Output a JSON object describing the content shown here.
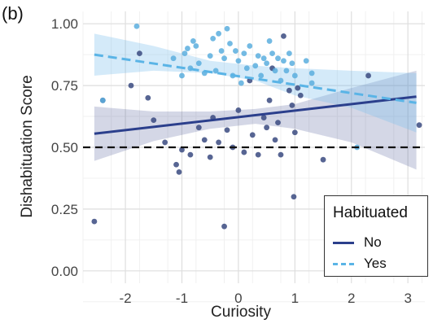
{
  "panel_label": "(b)",
  "chart_data": {
    "type": "scatter",
    "xlabel": "Curiosity",
    "ylabel": "Dishabituation Score",
    "xlim": [
      -2.75,
      3.3
    ],
    "ylim": [
      -0.05,
      1.05
    ],
    "xticks": [
      -2,
      -1,
      0,
      1,
      2,
      3
    ],
    "yticks": [
      0.0,
      0.25,
      0.5,
      0.75,
      1.0
    ],
    "xtick_labels": [
      "-2",
      "-1",
      "0",
      "1",
      "2",
      "3"
    ],
    "ytick_labels": [
      "0.00",
      "0.25",
      "0.50",
      "0.75",
      "1.00"
    ],
    "grid": true,
    "reference_line": {
      "y": 0.5,
      "style": "dashed",
      "color": "#111111"
    },
    "legend": {
      "title": "Habituated",
      "placement": "bottom-right",
      "entries": [
        {
          "label": "No",
          "color": "#2b3f8c",
          "style": "solid"
        },
        {
          "label": "Yes",
          "color": "#5ab4e6",
          "style": "dashed"
        }
      ]
    },
    "series": [
      {
        "name": "No",
        "color": "#2b3f8c",
        "point_color": "#3a4a80",
        "fit": {
          "x": [
            -2.55,
            3.15
          ],
          "y": [
            0.555,
            0.705
          ]
        },
        "ci": {
          "x": [
            -2.55,
            -1.5,
            -0.5,
            0.3,
            1.0,
            2.0,
            3.15
          ],
          "lower": [
            0.445,
            0.525,
            0.575,
            0.595,
            0.575,
            0.52,
            0.41
          ],
          "upper": [
            0.665,
            0.645,
            0.645,
            0.655,
            0.675,
            0.74,
            0.81
          ]
        },
        "points": [
          {
            "x": -2.55,
            "y": 0.2
          },
          {
            "x": -2.4,
            "y": 0.69
          },
          {
            "x": -1.9,
            "y": 0.75
          },
          {
            "x": -1.75,
            "y": 0.88
          },
          {
            "x": -1.6,
            "y": 0.7
          },
          {
            "x": -1.5,
            "y": 0.61
          },
          {
            "x": -1.3,
            "y": 0.52
          },
          {
            "x": -1.1,
            "y": 0.43
          },
          {
            "x": -1.05,
            "y": 0.4
          },
          {
            "x": -1.0,
            "y": 0.49
          },
          {
            "x": -0.85,
            "y": 0.47
          },
          {
            "x": -0.7,
            "y": 0.58
          },
          {
            "x": -0.6,
            "y": 0.53
          },
          {
            "x": -0.5,
            "y": 0.46
          },
          {
            "x": -0.45,
            "y": 0.62
          },
          {
            "x": -0.35,
            "y": 0.52
          },
          {
            "x": -0.25,
            "y": 0.18
          },
          {
            "x": -0.2,
            "y": 0.57
          },
          {
            "x": -0.1,
            "y": 0.5
          },
          {
            "x": 0.0,
            "y": 0.65
          },
          {
            "x": 0.1,
            "y": 0.48
          },
          {
            "x": 0.2,
            "y": 0.77
          },
          {
            "x": 0.25,
            "y": 0.55
          },
          {
            "x": 0.35,
            "y": 0.47
          },
          {
            "x": 0.45,
            "y": 0.62
          },
          {
            "x": 0.5,
            "y": 0.58
          },
          {
            "x": 0.55,
            "y": 0.69
          },
          {
            "x": 0.6,
            "y": 0.82
          },
          {
            "x": 0.65,
            "y": 0.53
          },
          {
            "x": 0.7,
            "y": 0.6
          },
          {
            "x": 0.75,
            "y": 0.47
          },
          {
            "x": 0.8,
            "y": 0.95
          },
          {
            "x": 0.9,
            "y": 0.73
          },
          {
            "x": 0.95,
            "y": 0.67
          },
          {
            "x": 0.98,
            "y": 0.3
          },
          {
            "x": 1.0,
            "y": 0.56
          },
          {
            "x": 1.05,
            "y": 0.74
          },
          {
            "x": 1.1,
            "y": 0.71
          },
          {
            "x": 1.5,
            "y": 0.45
          },
          {
            "x": 2.3,
            "y": 0.79
          },
          {
            "x": 3.2,
            "y": 0.59
          }
        ]
      },
      {
        "name": "Yes",
        "color": "#5ab4e6",
        "point_color": "#5aaede",
        "fit": {
          "x": [
            -2.55,
            3.15
          ],
          "y": [
            0.875,
            0.68
          ]
        },
        "ci": {
          "x": [
            -2.55,
            -1.5,
            -0.5,
            0.3,
            1.0,
            2.0,
            3.15
          ],
          "lower": [
            0.79,
            0.81,
            0.8,
            0.77,
            0.71,
            0.66,
            0.56
          ],
          "upper": [
            0.96,
            0.91,
            0.85,
            0.83,
            0.82,
            0.81,
            0.8
          ]
        },
        "points": [
          {
            "x": -2.4,
            "y": 0.69
          },
          {
            "x": -1.8,
            "y": 0.99
          },
          {
            "x": -1.15,
            "y": 0.86
          },
          {
            "x": -1.0,
            "y": 0.79
          },
          {
            "x": -0.95,
            "y": 0.88
          },
          {
            "x": -0.9,
            "y": 0.9
          },
          {
            "x": -0.85,
            "y": 0.82
          },
          {
            "x": -0.8,
            "y": 0.93
          },
          {
            "x": -0.75,
            "y": 0.91
          },
          {
            "x": -0.7,
            "y": 0.84
          },
          {
            "x": -0.6,
            "y": 0.8
          },
          {
            "x": -0.5,
            "y": 0.87
          },
          {
            "x": -0.45,
            "y": 0.94
          },
          {
            "x": -0.4,
            "y": 0.81
          },
          {
            "x": -0.35,
            "y": 0.96
          },
          {
            "x": -0.3,
            "y": 0.89
          },
          {
            "x": -0.25,
            "y": 0.86
          },
          {
            "x": -0.2,
            "y": 0.98
          },
          {
            "x": -0.15,
            "y": 0.92
          },
          {
            "x": -0.1,
            "y": 0.79
          },
          {
            "x": -0.05,
            "y": 0.89
          },
          {
            "x": 0.0,
            "y": 0.85
          },
          {
            "x": 0.05,
            "y": 0.76
          },
          {
            "x": 0.1,
            "y": 0.88
          },
          {
            "x": 0.15,
            "y": 0.82
          },
          {
            "x": 0.2,
            "y": 0.91
          },
          {
            "x": 0.3,
            "y": 0.83
          },
          {
            "x": 0.35,
            "y": 0.87
          },
          {
            "x": 0.4,
            "y": 0.79
          },
          {
            "x": 0.45,
            "y": 0.86
          },
          {
            "x": 0.5,
            "y": 0.84
          },
          {
            "x": 0.55,
            "y": 0.93
          },
          {
            "x": 0.6,
            "y": 0.88
          },
          {
            "x": 0.65,
            "y": 0.81
          },
          {
            "x": 0.7,
            "y": 0.86
          },
          {
            "x": 0.75,
            "y": 0.77
          },
          {
            "x": 0.8,
            "y": 0.85
          },
          {
            "x": 0.85,
            "y": 0.81
          },
          {
            "x": 0.9,
            "y": 0.88
          },
          {
            "x": 0.95,
            "y": 0.84
          },
          {
            "x": 1.0,
            "y": 0.79
          },
          {
            "x": 1.2,
            "y": 0.85
          },
          {
            "x": 1.3,
            "y": 0.8
          },
          {
            "x": 1.3,
            "y": 0.76
          },
          {
            "x": 2.1,
            "y": 0.5
          }
        ]
      }
    ]
  }
}
